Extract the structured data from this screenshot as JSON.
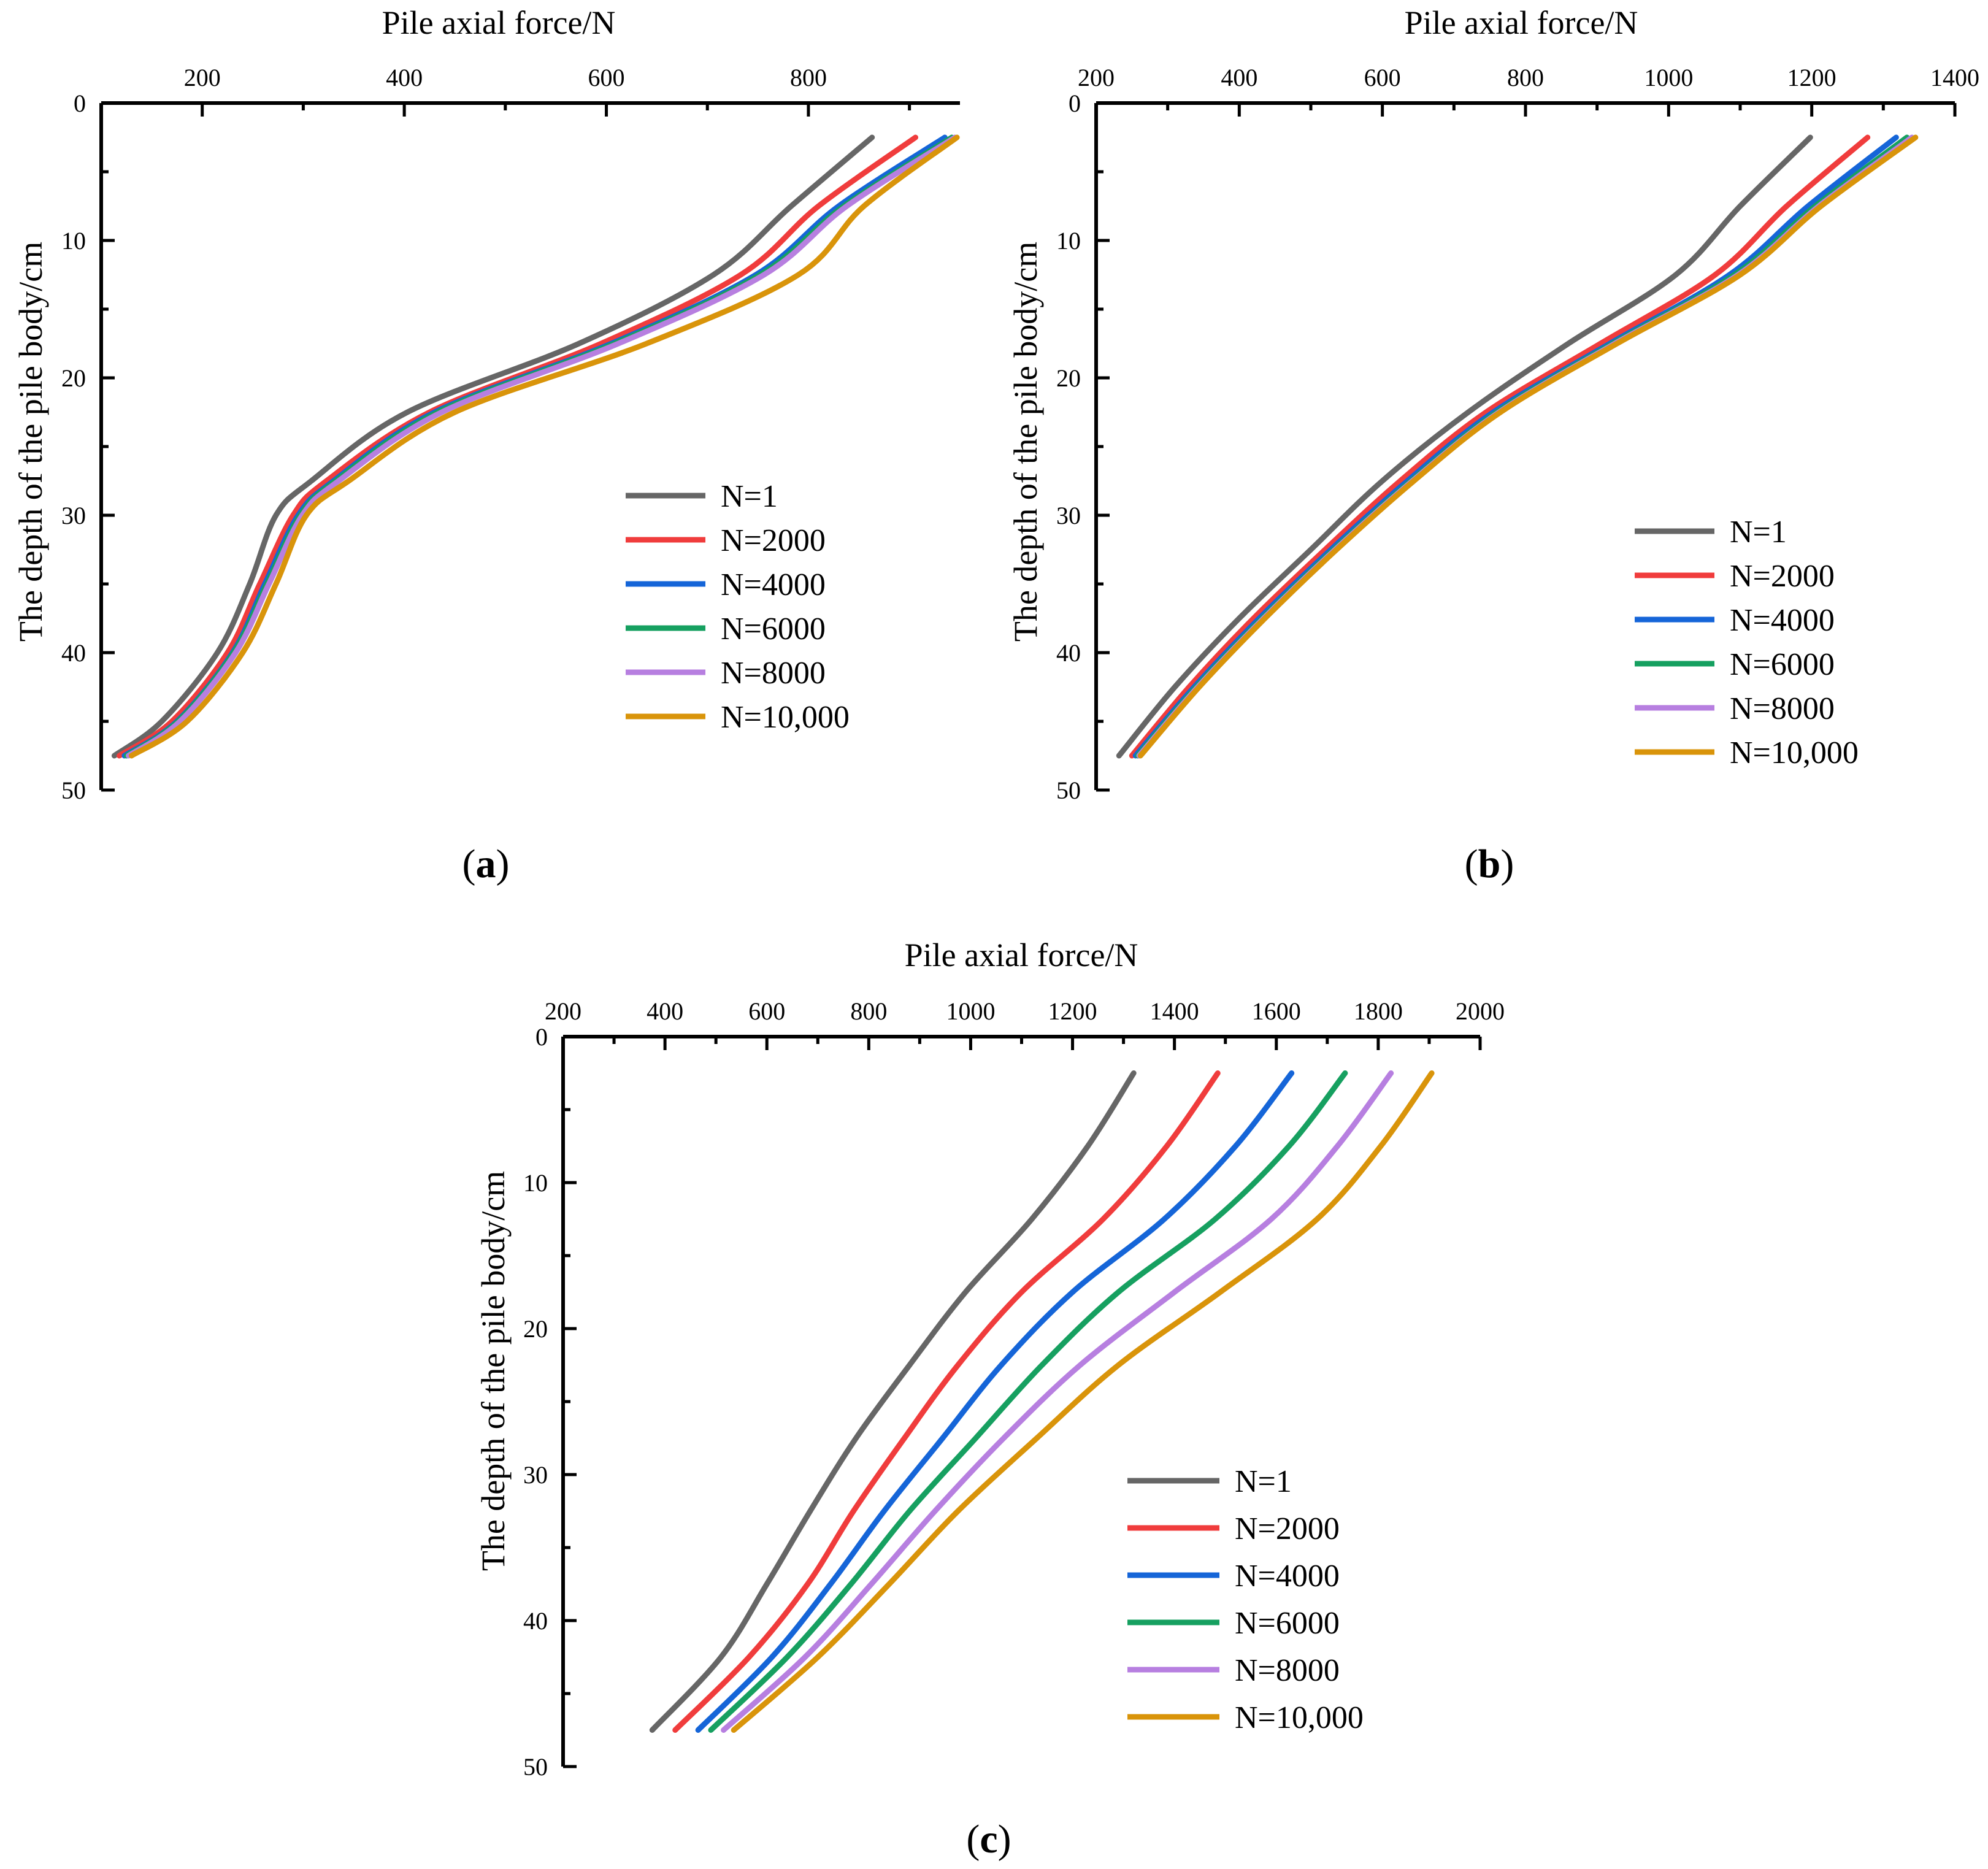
{
  "figure": {
    "panel_labels": [
      "(a)",
      "(b)",
      "(c)"
    ]
  },
  "chart_data": [
    {
      "id": "a",
      "type": "line",
      "panel_label": "a",
      "xlabel": "Pile axial force/N",
      "ylabel": "The depth of the pile body/cm",
      "xlim": [
        100,
        950
      ],
      "ylim": [
        0,
        50
      ],
      "x_inverted": false,
      "y_inverted": true,
      "xticks": [
        200,
        400,
        600,
        800
      ],
      "yticks": [
        0,
        10,
        20,
        30,
        40,
        50
      ],
      "legend_position": "center-right",
      "depth": [
        2.5,
        7.5,
        12.5,
        17.5,
        22.5,
        27.5,
        30,
        35,
        40,
        45,
        47.5
      ],
      "series": [
        {
          "name": "N=1",
          "color": "#666666",
          "values": [
            863,
            783,
            706,
            573,
            403,
            308,
            273,
            247,
            215,
            160,
            113
          ]
        },
        {
          "name": "N=2000",
          "color": "#f03c3c",
          "values": [
            906,
            810,
            733,
            595,
            425,
            323,
            290,
            257,
            225,
            170,
            118
          ]
        },
        {
          "name": "N=4000",
          "color": "#1565d8",
          "values": [
            935,
            830,
            748,
            605,
            430,
            330,
            295,
            262,
            230,
            175,
            123
          ]
        },
        {
          "name": "N=6000",
          "color": "#16a060",
          "values": [
            942,
            835,
            752,
            608,
            433,
            332,
            297,
            264,
            231,
            176,
            125
          ]
        },
        {
          "name": "N=8000",
          "color": "#b77fe0",
          "values": [
            945,
            838,
            756,
            612,
            437,
            335,
            299,
            266,
            233,
            178,
            127
          ]
        },
        {
          "name": "N=10,000",
          "color": "#d9940a",
          "values": [
            947,
            855,
            790,
            640,
            450,
            345,
            303,
            273,
            240,
            185,
            130
          ]
        }
      ]
    },
    {
      "id": "b",
      "type": "line",
      "panel_label": "b",
      "xlabel": "Pile axial force/N",
      "ylabel": "The depth of the pile body/cm",
      "xlim": [
        200,
        1400
      ],
      "ylim": [
        0,
        50
      ],
      "x_inverted": false,
      "y_inverted": true,
      "xticks": [
        200,
        400,
        600,
        800,
        1000,
        1200,
        1400
      ],
      "yticks": [
        0,
        10,
        20,
        30,
        40,
        50
      ],
      "legend_position": "lower-right",
      "depth": [
        2.5,
        7.5,
        12.5,
        17.5,
        22.5,
        27.5,
        32.5,
        37.5,
        42.5,
        47.5
      ],
      "series": [
        {
          "name": "N=1",
          "color": "#666666",
          "values": [
            1198,
            1100,
            1010,
            860,
            720,
            600,
            500,
            400,
            310,
            232
          ]
        },
        {
          "name": "N=2000",
          "color": "#f03c3c",
          "values": [
            1278,
            1165,
            1065,
            905,
            745,
            625,
            520,
            420,
            330,
            250
          ]
        },
        {
          "name": "N=4000",
          "color": "#1565d8",
          "values": [
            1318,
            1195,
            1085,
            918,
            755,
            635,
            528,
            428,
            337,
            255
          ]
        },
        {
          "name": "N=6000",
          "color": "#16a060",
          "values": [
            1333,
            1205,
            1092,
            922,
            760,
            640,
            532,
            432,
            340,
            258
          ]
        },
        {
          "name": "N=8000",
          "color": "#b77fe0",
          "values": [
            1340,
            1210,
            1097,
            925,
            763,
            642,
            534,
            434,
            342,
            260
          ]
        },
        {
          "name": "N=10,000",
          "color": "#d9940a",
          "values": [
            1345,
            1213,
            1100,
            928,
            765,
            644,
            536,
            436,
            344,
            262
          ]
        }
      ]
    },
    {
      "id": "c",
      "type": "line",
      "panel_label": "c",
      "xlabel": "Pile axial force/N",
      "ylabel": "The depth of the pile body/cm",
      "xlim": [
        200,
        2000
      ],
      "ylim": [
        0,
        50
      ],
      "x_inverted": false,
      "y_inverted": true,
      "xticks": [
        200,
        400,
        600,
        800,
        1000,
        1200,
        1400,
        1600,
        1800,
        2000
      ],
      "yticks": [
        0,
        10,
        20,
        30,
        40,
        50
      ],
      "legend_position": "lower-right",
      "depth": [
        2.5,
        7.5,
        12.5,
        17.5,
        22.5,
        27.5,
        32.5,
        37.5,
        42.5,
        47.5
      ],
      "series": [
        {
          "name": "N=1",
          "color": "#666666",
          "values": [
            1320,
            1230,
            1120,
            990,
            880,
            775,
            685,
            600,
            510,
            375
          ]
        },
        {
          "name": "N=2000",
          "color": "#f03c3c",
          "values": [
            1485,
            1385,
            1260,
            1100,
            975,
            870,
            770,
            680,
            565,
            420
          ]
        },
        {
          "name": "N=4000",
          "color": "#1565d8",
          "values": [
            1630,
            1520,
            1380,
            1200,
            1060,
            945,
            830,
            725,
            610,
            465
          ]
        },
        {
          "name": "N=6000",
          "color": "#16a060",
          "values": [
            1735,
            1625,
            1480,
            1290,
            1140,
            1010,
            880,
            765,
            640,
            490
          ]
        },
        {
          "name": "N=8000",
          "color": "#b77fe0",
          "values": [
            1825,
            1720,
            1590,
            1400,
            1215,
            1065,
            930,
            805,
            675,
            515
          ]
        },
        {
          "name": "N=10,000",
          "color": "#d9940a",
          "values": [
            1905,
            1805,
            1680,
            1490,
            1290,
            1130,
            975,
            840,
            700,
            535
          ]
        }
      ]
    }
  ]
}
